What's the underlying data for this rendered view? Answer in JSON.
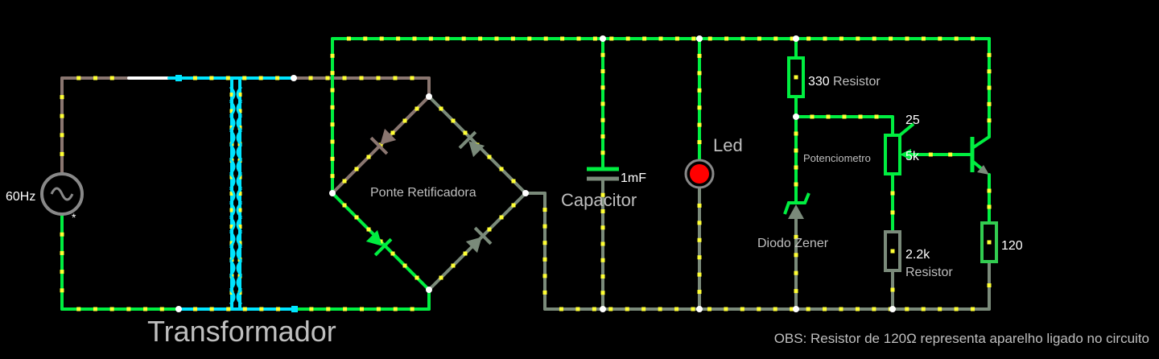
{
  "source": {
    "label": "60Hz",
    "marker": "*"
  },
  "transformer": {
    "label": "Transformador"
  },
  "bridge": {
    "label": "Ponte Retificadora"
  },
  "capacitor": {
    "value": "1mF",
    "label": "Capacitor"
  },
  "led": {
    "label": "Led"
  },
  "resistor1": {
    "value": "330",
    "label": "Resistor"
  },
  "potentiometer": {
    "label": "Potenciometro",
    "value": "5k",
    "wiper": "25"
  },
  "zener": {
    "label": "Diodo Zener"
  },
  "resistor2": {
    "value": "2.2k",
    "label": "Resistor"
  },
  "load": {
    "value": "120"
  },
  "note": "OBS: Resistor de 120Ω representa aparelho ligado no circuito",
  "colors": {
    "active_wire": "#00ee40",
    "idle_wire": "#7a8a7a",
    "transformer": "#00e5ff",
    "mid_wire": "#8a7670",
    "dot": "#ffff33",
    "led": "#ff0000",
    "text": "#bfbfbf",
    "white_text": "#ffffff"
  }
}
